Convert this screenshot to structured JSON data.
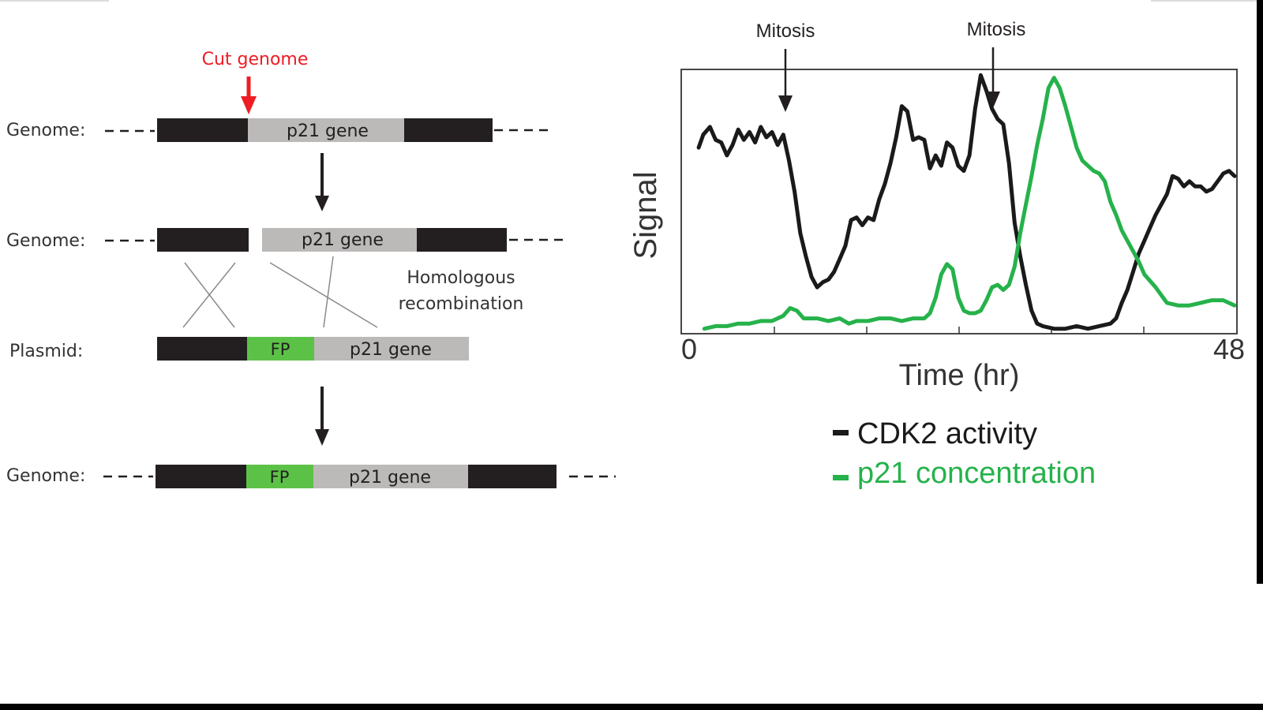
{
  "diagram": {
    "cut_label": "Cut genome",
    "genome_label": "Genome:",
    "plasmid_label": "Plasmid:",
    "p21_gene": "p21 gene",
    "fp": "FP",
    "homologous": "Homologous",
    "recombination": "recombination",
    "colors": {
      "black_segment": "#231f20",
      "gray_segment": "#bcbab8",
      "green_segment": "#5cc247",
      "cut_arrow": "#ee1c24"
    }
  },
  "chart_data": {
    "type": "line",
    "ylabel": "Signal",
    "xlabel": "Time (hr)",
    "x_ticks": [
      "0",
      "48"
    ],
    "xlim": [
      0,
      48
    ],
    "ylim": [
      0,
      1
    ],
    "legend_position": "bottom",
    "annotations": [
      {
        "text": "Mitosis",
        "x": 9
      },
      {
        "text": "Mitosis",
        "x": 27
      }
    ],
    "series": [
      {
        "name": "CDK2 activity",
        "color": "#1a1a1a",
        "points": [
          [
            0.5,
            0.71
          ],
          [
            0.9,
            0.76
          ],
          [
            1.5,
            0.79
          ],
          [
            2.0,
            0.74
          ],
          [
            2.5,
            0.73
          ],
          [
            3.0,
            0.68
          ],
          [
            3.5,
            0.72
          ],
          [
            4.0,
            0.78
          ],
          [
            4.5,
            0.74
          ],
          [
            5.0,
            0.77
          ],
          [
            5.5,
            0.73
          ],
          [
            6.0,
            0.79
          ],
          [
            6.5,
            0.75
          ],
          [
            7.0,
            0.77
          ],
          [
            7.5,
            0.72
          ],
          [
            8.0,
            0.76
          ],
          [
            8.5,
            0.66
          ],
          [
            9.0,
            0.54
          ],
          [
            9.5,
            0.38
          ],
          [
            10.0,
            0.29
          ],
          [
            10.5,
            0.21
          ],
          [
            11.0,
            0.17
          ],
          [
            11.5,
            0.19
          ],
          [
            12.0,
            0.2
          ],
          [
            12.5,
            0.23
          ],
          [
            13.0,
            0.28
          ],
          [
            13.5,
            0.33
          ],
          [
            14.0,
            0.43
          ],
          [
            14.5,
            0.44
          ],
          [
            15.0,
            0.41
          ],
          [
            15.5,
            0.44
          ],
          [
            16.0,
            0.43
          ],
          [
            16.5,
            0.51
          ],
          [
            17.0,
            0.57
          ],
          [
            17.5,
            0.65
          ],
          [
            18.0,
            0.75
          ],
          [
            18.5,
            0.87
          ],
          [
            19.0,
            0.85
          ],
          [
            19.5,
            0.74
          ],
          [
            20.0,
            0.75
          ],
          [
            20.5,
            0.74
          ],
          [
            21.0,
            0.63
          ],
          [
            21.5,
            0.68
          ],
          [
            22.0,
            0.64
          ],
          [
            22.5,
            0.73
          ],
          [
            23.0,
            0.71
          ],
          [
            23.5,
            0.64
          ],
          [
            24.0,
            0.62
          ],
          [
            24.5,
            0.68
          ],
          [
            25.0,
            0.86
          ],
          [
            25.5,
            0.99
          ],
          [
            26.0,
            0.93
          ],
          [
            26.5,
            0.86
          ],
          [
            27.0,
            0.82
          ],
          [
            27.5,
            0.8
          ],
          [
            28.0,
            0.65
          ],
          [
            28.5,
            0.42
          ],
          [
            29.0,
            0.29
          ],
          [
            29.5,
            0.18
          ],
          [
            30.0,
            0.08
          ],
          [
            30.5,
            0.03
          ],
          [
            31.0,
            0.02
          ],
          [
            32.0,
            0.01
          ],
          [
            33.0,
            0.01
          ],
          [
            34.0,
            0.02
          ],
          [
            35.0,
            0.01
          ],
          [
            36.0,
            0.02
          ],
          [
            37.0,
            0.03
          ],
          [
            37.5,
            0.05
          ],
          [
            38.0,
            0.11
          ],
          [
            38.5,
            0.16
          ],
          [
            39.0,
            0.23
          ],
          [
            39.5,
            0.3
          ],
          [
            40.0,
            0.35
          ],
          [
            40.5,
            0.4
          ],
          [
            41.0,
            0.45
          ],
          [
            41.5,
            0.49
          ],
          [
            42.0,
            0.53
          ],
          [
            42.5,
            0.6
          ],
          [
            43.0,
            0.59
          ],
          [
            43.5,
            0.56
          ],
          [
            44.0,
            0.58
          ],
          [
            44.5,
            0.56
          ],
          [
            45.0,
            0.56
          ],
          [
            45.5,
            0.54
          ],
          [
            46.0,
            0.55
          ],
          [
            46.5,
            0.58
          ],
          [
            47.0,
            0.61
          ],
          [
            47.5,
            0.62
          ],
          [
            48.0,
            0.6
          ]
        ]
      },
      {
        "name": "p21 concentration",
        "color": "#26b24b",
        "points": [
          [
            1.0,
            0.01
          ],
          [
            2.0,
            0.02
          ],
          [
            3.0,
            0.02
          ],
          [
            4.0,
            0.03
          ],
          [
            5.0,
            0.03
          ],
          [
            6.0,
            0.04
          ],
          [
            7.0,
            0.04
          ],
          [
            8.0,
            0.06
          ],
          [
            8.6,
            0.09
          ],
          [
            9.2,
            0.08
          ],
          [
            9.8,
            0.05
          ],
          [
            11.0,
            0.05
          ],
          [
            12.0,
            0.04
          ],
          [
            13.0,
            0.05
          ],
          [
            13.8,
            0.03
          ],
          [
            14.5,
            0.04
          ],
          [
            15.5,
            0.04
          ],
          [
            16.5,
            0.05
          ],
          [
            17.5,
            0.05
          ],
          [
            18.5,
            0.04
          ],
          [
            19.5,
            0.05
          ],
          [
            20.5,
            0.05
          ],
          [
            21.0,
            0.07
          ],
          [
            21.5,
            0.13
          ],
          [
            22.0,
            0.22
          ],
          [
            22.5,
            0.26
          ],
          [
            23.0,
            0.24
          ],
          [
            23.5,
            0.13
          ],
          [
            24.0,
            0.08
          ],
          [
            24.5,
            0.07
          ],
          [
            25.0,
            0.07
          ],
          [
            25.5,
            0.08
          ],
          [
            26.0,
            0.12
          ],
          [
            26.5,
            0.17
          ],
          [
            27.0,
            0.18
          ],
          [
            27.5,
            0.16
          ],
          [
            28.0,
            0.18
          ],
          [
            28.5,
            0.25
          ],
          [
            29.0,
            0.38
          ],
          [
            29.5,
            0.49
          ],
          [
            30.0,
            0.6
          ],
          [
            30.5,
            0.72
          ],
          [
            31.0,
            0.82
          ],
          [
            31.5,
            0.94
          ],
          [
            32.0,
            0.98
          ],
          [
            32.5,
            0.94
          ],
          [
            33.0,
            0.87
          ],
          [
            33.5,
            0.79
          ],
          [
            34.0,
            0.71
          ],
          [
            34.5,
            0.66
          ],
          [
            35.0,
            0.64
          ],
          [
            35.5,
            0.62
          ],
          [
            36.0,
            0.61
          ],
          [
            36.5,
            0.58
          ],
          [
            37.0,
            0.5
          ],
          [
            37.5,
            0.45
          ],
          [
            38.0,
            0.39
          ],
          [
            38.5,
            0.35
          ],
          [
            39.0,
            0.31
          ],
          [
            39.5,
            0.27
          ],
          [
            40.0,
            0.22
          ],
          [
            41.0,
            0.17
          ],
          [
            41.5,
            0.14
          ],
          [
            42.0,
            0.11
          ],
          [
            43.0,
            0.1
          ],
          [
            44.0,
            0.1
          ],
          [
            45.0,
            0.11
          ],
          [
            46.0,
            0.12
          ],
          [
            47.0,
            0.12
          ],
          [
            48.0,
            0.1
          ]
        ]
      }
    ]
  }
}
